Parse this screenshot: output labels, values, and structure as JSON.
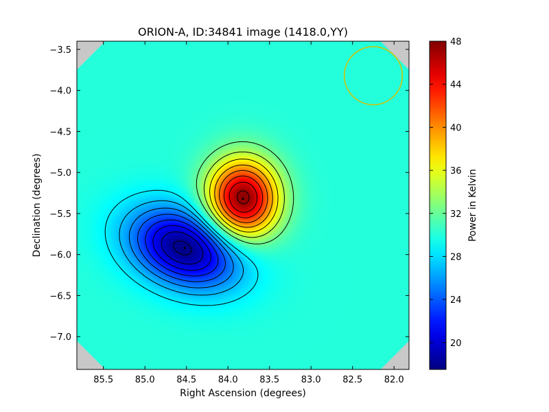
{
  "chart_data": {
    "type": "heatmap",
    "title": "ORION-A, ID:34841 image (1418.0,YY)",
    "xlabel": "Right Ascension (degrees)",
    "ylabel": "Declination (degrees)",
    "colorbar_label": "Power in Kelvin",
    "xlim": [
      85.82,
      81.82
    ],
    "ylim": [
      -7.4,
      -3.4
    ],
    "x_ticks": [
      "85.5",
      "85.0",
      "84.5",
      "84.0",
      "83.5",
      "83.0",
      "82.5",
      "82.0"
    ],
    "x_tick_values": [
      85.5,
      85.0,
      84.5,
      84.0,
      83.5,
      83.0,
      82.5,
      82.0
    ],
    "y_ticks": [
      "−3.5",
      "−4.0",
      "−4.5",
      "−5.0",
      "−5.5",
      "−6.0",
      "−6.5",
      "−7.0"
    ],
    "y_tick_values": [
      -3.5,
      -4.0,
      -4.5,
      -5.0,
      -5.5,
      -6.0,
      -6.5,
      -7.0
    ],
    "colorbar_ticks": [
      "20",
      "24",
      "28",
      "32",
      "36",
      "40",
      "44",
      "48"
    ],
    "colorbar_tick_values": [
      20,
      24,
      28,
      32,
      36,
      40,
      44,
      48
    ],
    "colorbar_range": [
      17.5,
      48
    ],
    "colormap": "jet",
    "background_level": 30,
    "peaks": [
      {
        "label": "hot source",
        "ra": 83.82,
        "dec": -5.32,
        "value": 48
      },
      {
        "label": "cold source",
        "ra": 84.52,
        "dec": -5.92,
        "value": 17.5
      }
    ],
    "contour_count": 8,
    "beam_circle": {
      "ra": 82.25,
      "dec": -3.82,
      "radius_deg": 0.35,
      "color": "#d4c000"
    },
    "masked_color": "#c8c8c8"
  }
}
